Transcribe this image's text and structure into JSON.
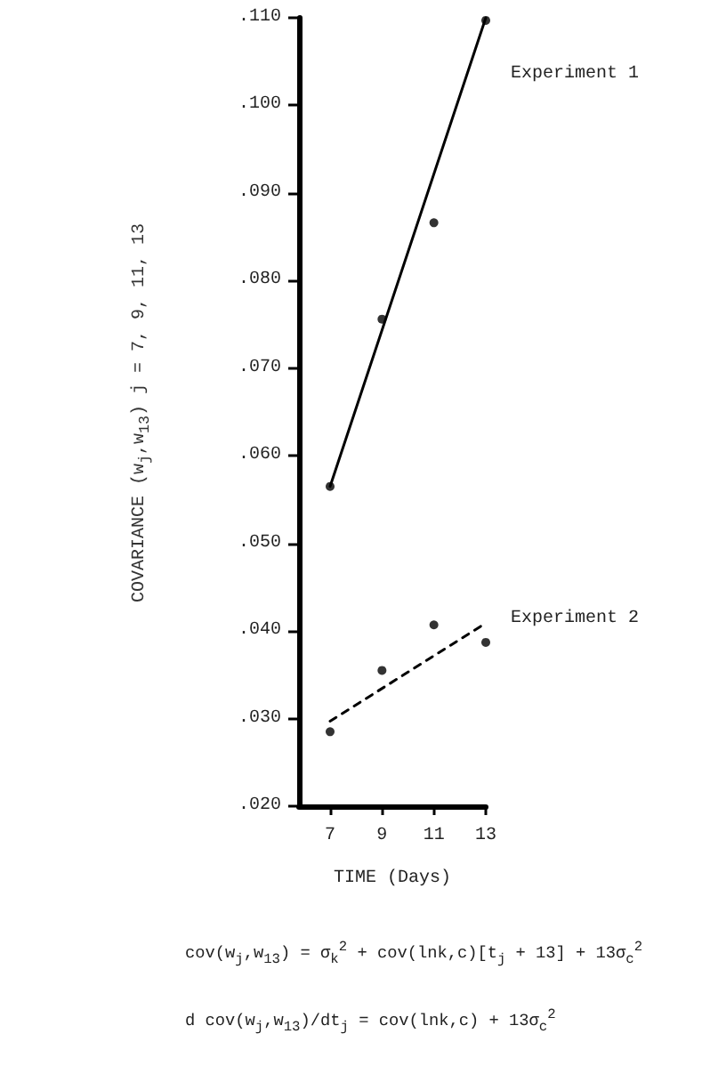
{
  "chart_data": {
    "type": "scatter",
    "xlabel": "TIME (Days)",
    "ylabel": "COVARIANCE (w$_{j}$,w$_{13}$)  j = 7, 9, 11, 13",
    "xlim": [
      5.8,
      13
    ],
    "xticks": [
      7,
      9,
      11,
      13
    ],
    "ylim": [
      0.02,
      0.11
    ],
    "yticks": [
      {
        "value": 0.02,
        "label": ".020"
      },
      {
        "value": 0.03,
        "label": ".030"
      },
      {
        "value": 0.04,
        "label": ".040"
      },
      {
        "value": 0.05,
        "label": ".050"
      },
      {
        "value": 0.06,
        "label": ".060"
      },
      {
        "value": 0.07,
        "label": ".070"
      },
      {
        "value": 0.08,
        "label": ".080"
      },
      {
        "value": 0.09,
        "label": ".090"
      },
      {
        "value": 0.1,
        "label": ".100"
      },
      {
        "value": 0.11,
        "label": ".110"
      }
    ],
    "grid": false,
    "series": [
      {
        "color": "#000000",
        "marker": "circle",
        "x": [
          7,
          9,
          11,
          13
        ],
        "values": [
          0.0565,
          0.0756,
          0.0866,
          0.1097
        ]
      },
      {
        "type": "line",
        "name": "Experiment 1",
        "color": "#000000",
        "marker": "none",
        "line_style": "solid",
        "x": [
          7,
          13
        ],
        "values": [
          0.0565,
          0.11
        ]
      },
      {
        "color": "#000000",
        "marker": "circle",
        "x": [
          7,
          9,
          11,
          13
        ],
        "values": [
          0.0285,
          0.0355,
          0.0407,
          0.0387
        ]
      },
      {
        "type": "line",
        "name": "Experiment 2",
        "color": "#000000",
        "marker": "none",
        "line_style": "dashed",
        "x": [
          7,
          13
        ],
        "values": [
          0.0297,
          0.0409
        ]
      }
    ],
    "annotations": [
      "cov(w$_{j}$,w$_{13}$) = σ$_{k}$$^{2}$ + cov(lnk,c)[t$_{j}$ + 13] + 13σ$_{c}$$^{2}$",
      "d cov(w$_{j}$,w$_{13}$)/dt$_{j}$ = cov(lnk,c) + 13σ$_{c}$$^{2}$"
    ]
  }
}
